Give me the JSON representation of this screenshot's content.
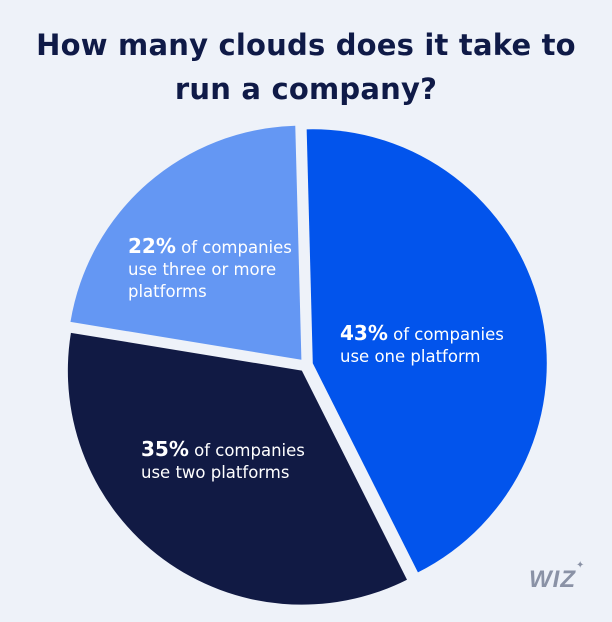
{
  "title": {
    "line1": "How many clouds does it take to",
    "line2": "run a company?"
  },
  "chart_data": {
    "type": "pie",
    "title": "How many clouds does it take to run a company?",
    "slices": [
      {
        "value": 43,
        "pct_label": "43%",
        "text": [
          "of companies",
          "use one platform"
        ],
        "color": "#0254ec"
      },
      {
        "value": 35,
        "pct_label": "35%",
        "text": [
          "of companies",
          "use two platforms"
        ],
        "color": "#111a44"
      },
      {
        "value": 22,
        "pct_label": "22%",
        "text": [
          "of companies",
          "use three or more",
          "platforms"
        ],
        "color": "#6497f3"
      }
    ]
  },
  "logo": {
    "text": "WIZ",
    "star": "✦"
  }
}
